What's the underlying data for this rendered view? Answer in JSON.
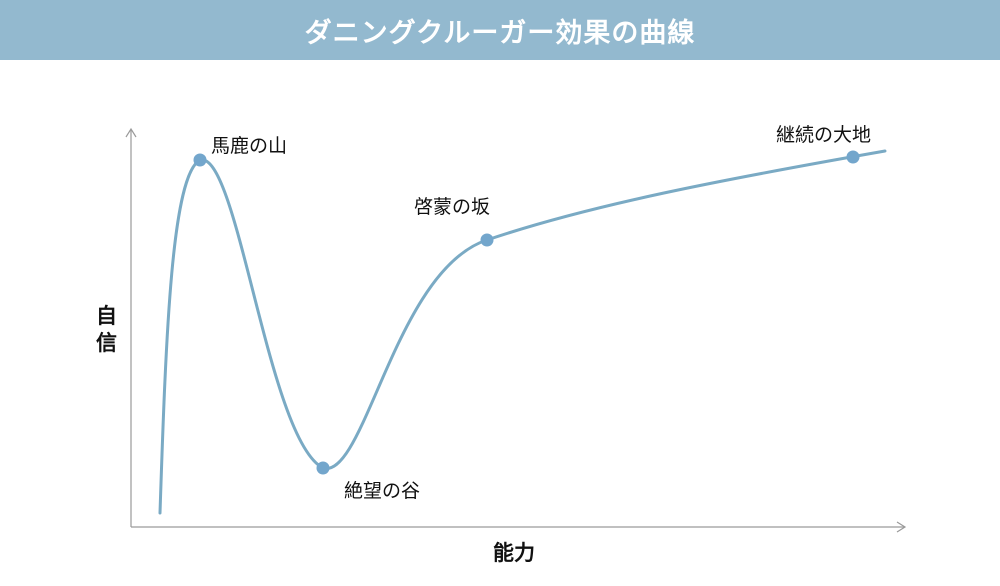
{
  "title": "ダニングクルーガー効果の曲線",
  "axes": {
    "y_label_line1": "自",
    "y_label_line2": "信",
    "x_label": "能力"
  },
  "points": {
    "peak": "馬鹿の山",
    "valley": "絶望の谷",
    "slope": "啓蒙の坂",
    "plateau": "継続の大地"
  },
  "colors": {
    "header_bg": "#93b9cf",
    "curve": "#7aaac4",
    "point": "#73a6cc",
    "axis": "#9a9a9a"
  }
}
